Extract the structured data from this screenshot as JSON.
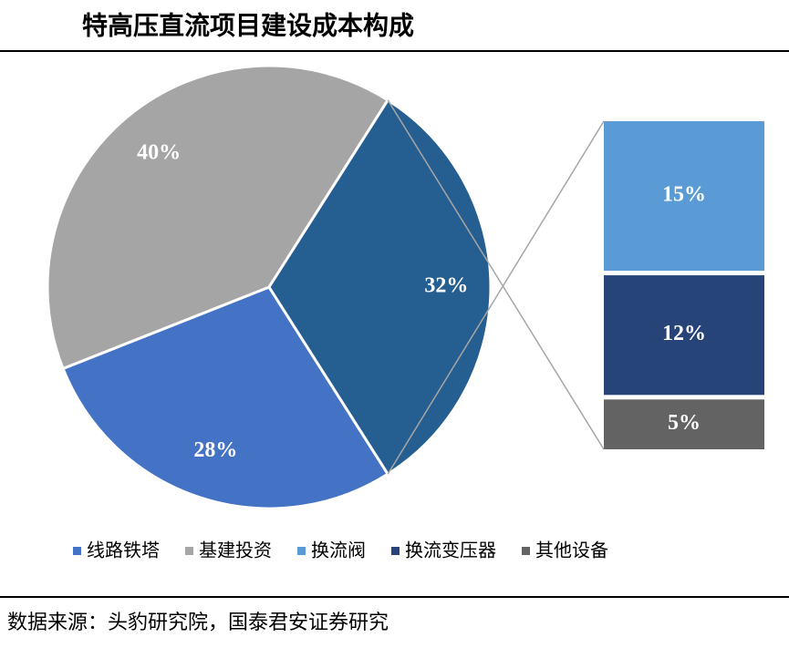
{
  "chart_data": {
    "type": "pie-of-bar",
    "title": "特高压直流项目建设成本构成",
    "categories": [
      "线路铁塔",
      "基建投资",
      null
    ],
    "values": [
      28,
      40,
      32
    ],
    "value_labels": [
      "28%",
      "40%",
      "32%"
    ],
    "colors": [
      "#4472c4",
      "#a5a5a5",
      "#255e91"
    ],
    "breakdown": {
      "categories": [
        "换流阀",
        "换流变压器",
        "其他设备"
      ],
      "values": [
        15,
        12,
        5
      ],
      "value_labels": [
        "15%",
        "12%",
        "5%"
      ],
      "colors": [
        "#5b9bd5",
        "#264478",
        "#636363"
      ]
    },
    "source": "数据来源：头豹研究院，国泰君安证券研究"
  }
}
